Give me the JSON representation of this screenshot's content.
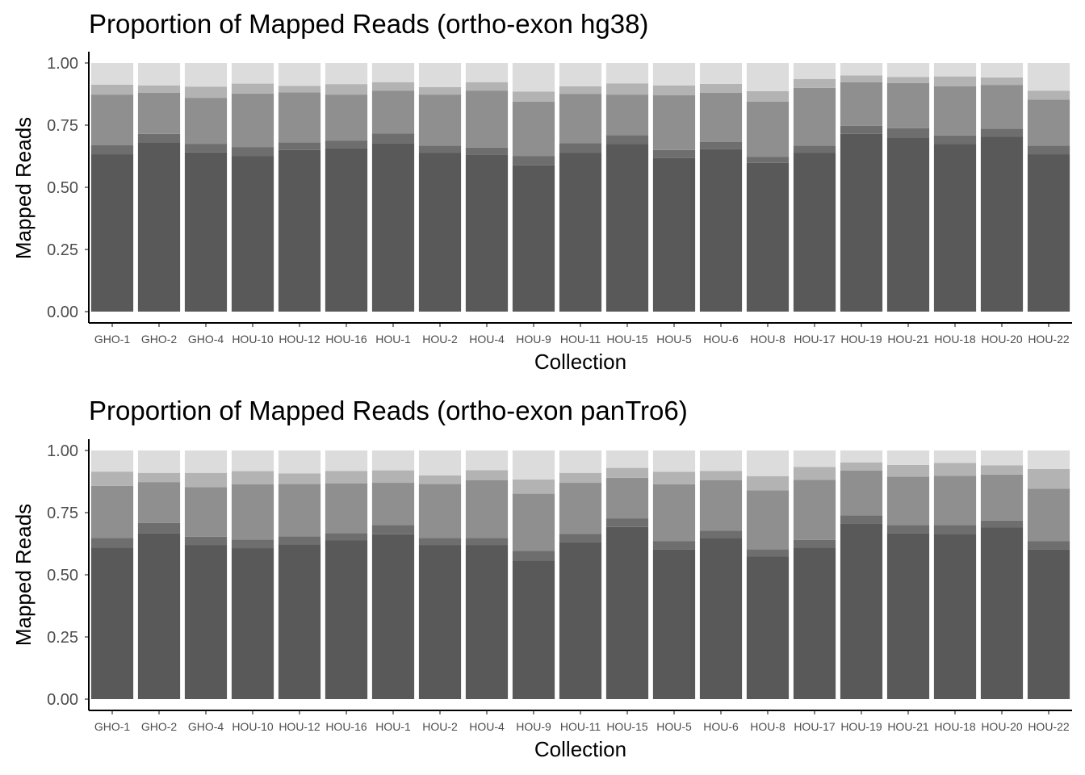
{
  "chart_data": [
    {
      "type": "bar",
      "stacked": true,
      "title": "Proportion of Mapped Reads (ortho-exon hg38)",
      "xlabel": "Collection",
      "ylabel": "Mapped Reads",
      "ylim": [
        0,
        1
      ],
      "yticks": [
        "0.00",
        "0.25",
        "0.50",
        "0.75",
        "1.00"
      ],
      "grid": false,
      "legend": "none",
      "categories": [
        "GHO-1",
        "GHO-2",
        "GHO-4",
        "HOU-10",
        "HOU-12",
        "HOU-16",
        "HOU-1",
        "HOU-2",
        "HOU-4",
        "HOU-9",
        "HOU-11",
        "HOU-15",
        "HOU-5",
        "HOU-6",
        "HOU-8",
        "HOU-17",
        "HOU-19",
        "HOU-21",
        "HOU-18",
        "HOU-20",
        "HOU-22"
      ],
      "series": [
        {
          "color": "#595959",
          "values": [
            0.633,
            0.68,
            0.64,
            0.625,
            0.65,
            0.658,
            0.678,
            0.638,
            0.63,
            0.588,
            0.638,
            0.675,
            0.618,
            0.653,
            0.598,
            0.638,
            0.715,
            0.7,
            0.675,
            0.703,
            0.633
          ]
        },
        {
          "color": "#6e6e6e",
          "values": [
            0.037,
            0.035,
            0.035,
            0.037,
            0.03,
            0.03,
            0.038,
            0.03,
            0.03,
            0.037,
            0.04,
            0.035,
            0.032,
            0.03,
            0.025,
            0.03,
            0.032,
            0.038,
            0.033,
            0.033,
            0.035
          ]
        },
        {
          "color": "#8f8f8f",
          "values": [
            0.203,
            0.165,
            0.185,
            0.215,
            0.202,
            0.185,
            0.173,
            0.205,
            0.228,
            0.22,
            0.198,
            0.163,
            0.22,
            0.197,
            0.222,
            0.232,
            0.176,
            0.181,
            0.198,
            0.176,
            0.185
          ]
        },
        {
          "color": "#b3b3b3",
          "values": [
            0.04,
            0.03,
            0.045,
            0.04,
            0.026,
            0.042,
            0.034,
            0.03,
            0.035,
            0.04,
            0.03,
            0.045,
            0.04,
            0.036,
            0.042,
            0.035,
            0.027,
            0.025,
            0.04,
            0.03,
            0.035
          ]
        },
        {
          "color": "#dcdcdc",
          "values": [
            0.087,
            0.09,
            0.095,
            0.083,
            0.092,
            0.085,
            0.077,
            0.097,
            0.077,
            0.115,
            0.094,
            0.082,
            0.09,
            0.084,
            0.113,
            0.065,
            0.05,
            0.056,
            0.054,
            0.058,
            0.112
          ]
        }
      ]
    },
    {
      "type": "bar",
      "stacked": true,
      "title": "Proportion of Mapped Reads (ortho-exon panTro6)",
      "xlabel": "Collection",
      "ylabel": "Mapped Reads",
      "ylim": [
        0,
        1
      ],
      "yticks": [
        "0.00",
        "0.25",
        "0.50",
        "0.75",
        "1.00"
      ],
      "grid": false,
      "legend": "none",
      "categories": [
        "GHO-1",
        "GHO-2",
        "GHO-4",
        "HOU-10",
        "HOU-12",
        "HOU-16",
        "HOU-1",
        "HOU-2",
        "HOU-4",
        "HOU-9",
        "HOU-11",
        "HOU-15",
        "HOU-5",
        "HOU-6",
        "HOU-8",
        "HOU-17",
        "HOU-19",
        "HOU-21",
        "HOU-18",
        "HOU-20",
        "HOU-22"
      ],
      "series": [
        {
          "color": "#595959",
          "values": [
            0.61,
            0.668,
            0.62,
            0.607,
            0.622,
            0.638,
            0.663,
            0.62,
            0.62,
            0.558,
            0.63,
            0.692,
            0.603,
            0.648,
            0.573,
            0.61,
            0.707,
            0.668,
            0.665,
            0.69,
            0.603
          ]
        },
        {
          "color": "#6e6e6e",
          "values": [
            0.038,
            0.04,
            0.033,
            0.035,
            0.033,
            0.03,
            0.037,
            0.028,
            0.028,
            0.038,
            0.035,
            0.035,
            0.033,
            0.03,
            0.03,
            0.03,
            0.032,
            0.032,
            0.035,
            0.028,
            0.033
          ]
        },
        {
          "color": "#8f8f8f",
          "values": [
            0.21,
            0.165,
            0.2,
            0.222,
            0.21,
            0.2,
            0.17,
            0.217,
            0.233,
            0.23,
            0.205,
            0.163,
            0.228,
            0.203,
            0.237,
            0.242,
            0.18,
            0.195,
            0.198,
            0.185,
            0.21
          ]
        },
        {
          "color": "#b3b3b3",
          "values": [
            0.057,
            0.037,
            0.057,
            0.053,
            0.043,
            0.05,
            0.05,
            0.035,
            0.04,
            0.057,
            0.04,
            0.04,
            0.05,
            0.037,
            0.057,
            0.052,
            0.033,
            0.047,
            0.052,
            0.037,
            0.08
          ]
        },
        {
          "color": "#dcdcdc",
          "values": [
            0.085,
            0.09,
            0.09,
            0.083,
            0.092,
            0.082,
            0.08,
            0.1,
            0.079,
            0.117,
            0.09,
            0.07,
            0.086,
            0.082,
            0.103,
            0.066,
            0.048,
            0.058,
            0.05,
            0.06,
            0.074
          ]
        }
      ]
    }
  ]
}
